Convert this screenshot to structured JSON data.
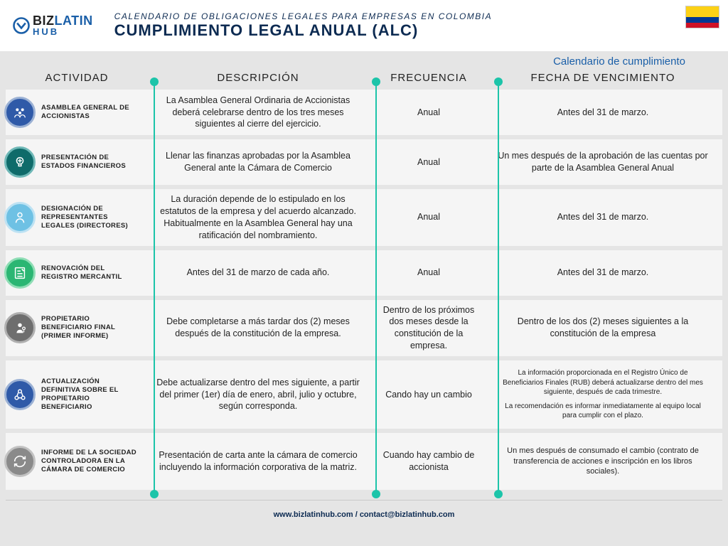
{
  "brand": {
    "line1a": "BIZ",
    "line1b": "LATIN",
    "line2": "HUB"
  },
  "header": {
    "pretitle": "CALENDARIO DE OBLIGACIONES LEGALES PARA EMPRESAS EN COLOMBIA",
    "title": "CUMPLIMIENTO LEGAL ANUAL (ALC)",
    "subtitle": "Calendario de cumplimiento"
  },
  "columns": {
    "c0": "ACTIVIDAD",
    "c1": "DESCRIPCIÓN",
    "c2": "FRECUENCIA",
    "c3": "FECHA DE VENCIMIENTO"
  },
  "icon_colors": {
    "r0": {
      "bg": "#2f5aa8",
      "border": "#9bb1d4"
    },
    "r1": {
      "bg": "#0f6b6a",
      "border": "#6fb8b7"
    },
    "r2": {
      "bg": "#6ec1e4",
      "border": "#bde2f3"
    },
    "r3": {
      "bg": "#2bb673",
      "border": "#8fddb5"
    },
    "r4": {
      "bg": "#6e6e6e",
      "border": "#b0b0b0"
    },
    "r5": {
      "bg": "#2f5aa8",
      "border": "#9bb1d4"
    },
    "r6": {
      "bg": "#8a8a8a",
      "border": "#c2c2c2"
    }
  },
  "rows": [
    {
      "activity": "ASAMBLEA GENERAL DE ACCIONISTAS",
      "description": "La Asamblea General Ordinaria de Accionistas deberá celebrarse dentro de los tres meses siguientes al cierre del ejercicio.",
      "frequency": "Anual",
      "due": "Antes del 31 de marzo."
    },
    {
      "activity": "PRESENTACIÓN DE ESTADOS FINANCIEROS",
      "description": "Llenar las finanzas aprobadas por la Asamblea General ante la Cámara de Comercio",
      "frequency": "Anual",
      "due": "Un mes después de la aprobación de las cuentas por parte de la Asamblea General Anual"
    },
    {
      "activity": "DESIGNACIÓN DE REPRESENTANTES LEGALES (DIRECTORES)",
      "description": "La duración depende de lo estipulado en los estatutos de la empresa y del acuerdo alcanzado. Habitualmente en la Asamblea General hay una ratificación del nombramiento.",
      "frequency": "Anual",
      "due": "Antes del 31 de marzo."
    },
    {
      "activity": "RENOVACIÓN DEL REGISTRO MERCANTIL",
      "description": "Antes del 31 de marzo de cada año.",
      "frequency": "Anual",
      "due": "Antes del 31 de marzo."
    },
    {
      "activity": "PROPIETARIO BENEFICIARIO FINAL (PRIMER INFORME)",
      "description": "Debe completarse a más tardar dos (2) meses después de la constitución de la empresa.",
      "frequency": "Dentro de los próximos dos meses desde la constitución de la empresa.",
      "due": "Dentro de los dos (2) meses siguientes a la constitución de la empresa"
    },
    {
      "activity": "ACTUALIZACIÓN DEFINITIVA SOBRE EL PROPIETARIO BENEFICIARIO",
      "description": "Debe actualizarse dentro del mes siguiente, a partir del primer (1er) día de enero, abril, julio y octubre, según corresponda.",
      "frequency": "Cando hay un cambio",
      "due": "La información proporcionada en el Registro Único de Beneficiarios Finales (RUB) deberá actualizarse dentro del mes siguiente, después de cada trimestre.\nLa recomendación es informar inmediatamente al equipo local para cumplir con el plazo."
    },
    {
      "activity": "INFORME DE LA SOCIEDAD CONTROLADORA EN LA CÁMARA DE COMERCIO",
      "description": "Presentación de carta ante la cámara de comercio incluyendo la información corporativa de la matriz.",
      "frequency": "Cuando hay cambio de accionista",
      "due": "Un mes después de consumado el cambio (contrato de transferencia de acciones e inscripción en los libros sociales)."
    }
  ],
  "footer": "www.bizlatinhub.com / contact@bizlatinhub.com",
  "theme": {
    "accent": "#1cc4a9",
    "brand_blue": "#1a5fa8",
    "dark_navy": "#0d2b52",
    "row_bg": "#f5f5f5",
    "page_bg": "#e5e5e5"
  }
}
